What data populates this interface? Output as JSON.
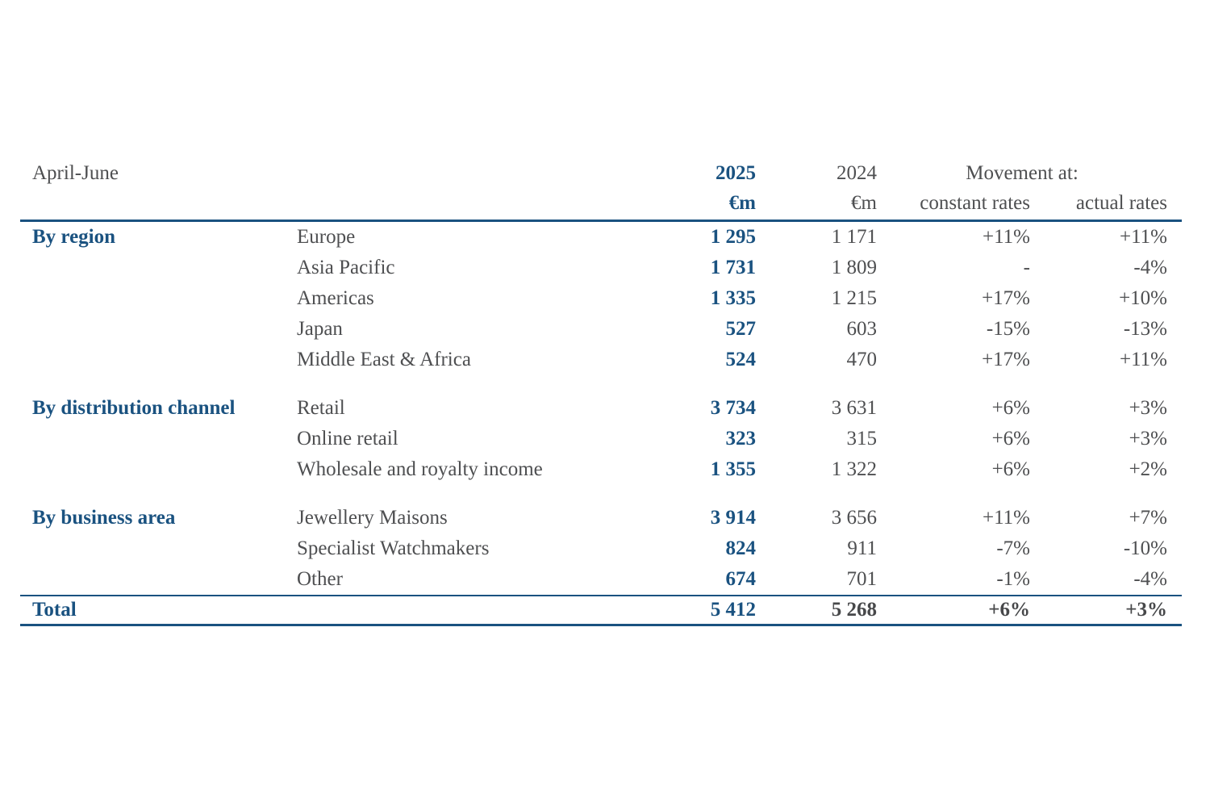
{
  "page": {
    "period": "April-June"
  },
  "colors": {
    "accent_blue": "#1a5280",
    "text_gray": "#4e4f51",
    "rule_blue": "#1a5280"
  },
  "table": {
    "header": {
      "year_current": "2025",
      "year_prior": "2024",
      "movement_at": "Movement at:",
      "unit_current": "€m",
      "unit_prior": "€m",
      "constant_rates": "constant rates",
      "actual_rates": "actual rates"
    },
    "sections": [
      {
        "label": "By region",
        "rows": [
          {
            "label": "Europe",
            "v2025": "1 295",
            "v2024": "1 171",
            "constant": "+11%",
            "actual": "+11%"
          },
          {
            "label": "Asia Pacific",
            "v2025": "1 731",
            "v2024": "1 809",
            "constant": "-",
            "actual": "-4%"
          },
          {
            "label": "Americas",
            "v2025": "1 335",
            "v2024": "1 215",
            "constant": "+17%",
            "actual": "+10%"
          },
          {
            "label": "Japan",
            "v2025": "527",
            "v2024": "603",
            "constant": "-15%",
            "actual": "-13%"
          },
          {
            "label": "Middle East & Africa",
            "v2025": "524",
            "v2024": "470",
            "constant": "+17%",
            "actual": "+11%"
          }
        ]
      },
      {
        "label": "By distribution channel",
        "rows": [
          {
            "label": "Retail",
            "v2025": "3 734",
            "v2024": "3 631",
            "constant": "+6%",
            "actual": "+3%"
          },
          {
            "label": "Online retail",
            "v2025": "323",
            "v2024": "315",
            "constant": "+6%",
            "actual": "+3%"
          },
          {
            "label": "Wholesale and royalty income",
            "v2025": "1 355",
            "v2024": "1 322",
            "constant": "+6%",
            "actual": "+2%"
          }
        ]
      },
      {
        "label": "By business area",
        "rows": [
          {
            "label": "Jewellery Maisons",
            "v2025": "3 914",
            "v2024": "3 656",
            "constant": "+11%",
            "actual": "+7%"
          },
          {
            "label": "Specialist Watchmakers",
            "v2025": "824",
            "v2024": "911",
            "constant": "-7%",
            "actual": "-10%"
          },
          {
            "label": "Other",
            "v2025": "674",
            "v2024": "701",
            "constant": "-1%",
            "actual": "-4%"
          }
        ]
      }
    ],
    "total": {
      "label": "Total",
      "v2025": "5 412",
      "v2024": "5 268",
      "constant": "+6%",
      "actual": "+3%"
    }
  }
}
